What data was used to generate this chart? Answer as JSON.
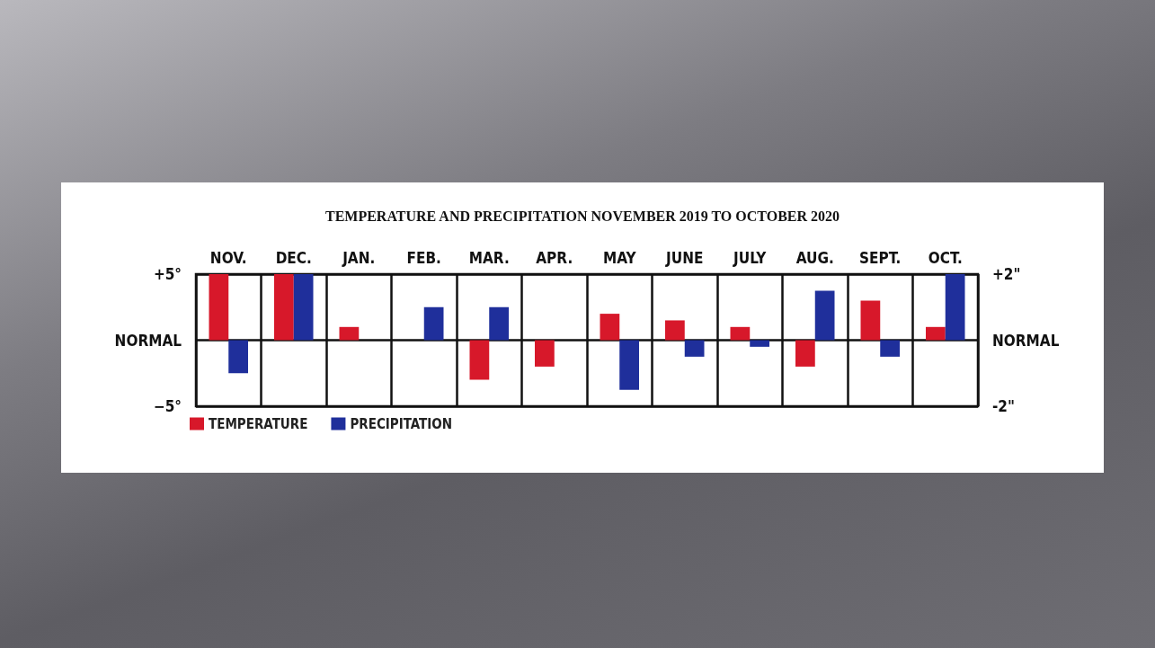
{
  "chart_data": {
    "type": "bar",
    "title": "TEMPERATURE AND PRECIPITATION NOVEMBER 2019 TO OCTOBER 2020",
    "categories": [
      "NOV.",
      "DEC.",
      "JAN.",
      "FEB.",
      "MAR.",
      "APR.",
      "MAY",
      "JUNE",
      "JULY",
      "AUG.",
      "SEPT.",
      "OCT."
    ],
    "series": [
      {
        "name": "TEMPERATURE",
        "color": "#d7182a",
        "values": [
          5,
          5,
          1,
          null,
          -3,
          -2,
          2,
          1.5,
          1,
          -2,
          3,
          1
        ]
      },
      {
        "name": "PRECIPITATION",
        "color": "#1f2f9b",
        "axis": "y2",
        "values": [
          -1,
          2,
          null,
          1,
          1,
          null,
          -1.5,
          -0.5,
          -0.2,
          1.5,
          -0.5,
          2
        ]
      }
    ],
    "ylim": [
      -5,
      5
    ],
    "yticks": [
      {
        "value": 5,
        "label": "+5°"
      },
      {
        "value": 0,
        "label": "NORMAL"
      },
      {
        "value": -5,
        "label": "−5°"
      }
    ],
    "y2lim": [
      -2,
      2
    ],
    "y2ticks": [
      {
        "value": 2,
        "label": "+2\""
      },
      {
        "value": 0,
        "label": "NORMAL"
      },
      {
        "value": -2,
        "label": "-2\""
      }
    ],
    "grid": true,
    "legend": "bottom left"
  }
}
